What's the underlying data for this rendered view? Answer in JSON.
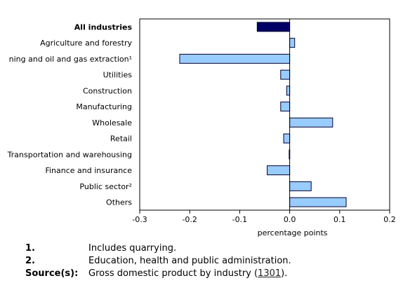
{
  "chart_data": {
    "type": "bar",
    "orientation": "horizontal",
    "categories": [
      "All industries",
      "Agriculture and forestry",
      "ning and oil and gas extraction¹",
      "Utilities",
      "Construction",
      "Manufacturing",
      "Wholesale",
      "Retail",
      "Transportation and warehousing",
      "Finance and insurance",
      "Public sector²",
      "Others"
    ],
    "values": [
      -0.065,
      0.01,
      -0.22,
      -0.018,
      -0.006,
      -0.018,
      0.086,
      -0.012,
      -0.001,
      -0.045,
      0.043,
      0.113
    ],
    "highlight_index": 0,
    "xlabel": "percentage points",
    "ylabel": "",
    "xlim": [
      -0.3,
      0.2
    ],
    "xticks": [
      -0.3,
      -0.2,
      -0.1,
      0.0,
      0.1,
      0.2
    ],
    "xtick_labels": [
      "-0.3",
      "-0.2",
      "-0.1",
      "0.0",
      "0.1",
      "0.2"
    ],
    "grid": false,
    "colors": {
      "bar": "#99ccff",
      "highlight": "#000066",
      "outline": "#000033",
      "zero_line": "#000000"
    }
  },
  "footnotes": [
    {
      "key": "1.",
      "text": "Includes quarrying."
    },
    {
      "key": "2.",
      "text": "Education, health and public administration."
    }
  ],
  "source": {
    "key": "Source(s):",
    "text_before": "Gross domestic product by industry (",
    "link": "1301",
    "text_after": ")."
  }
}
